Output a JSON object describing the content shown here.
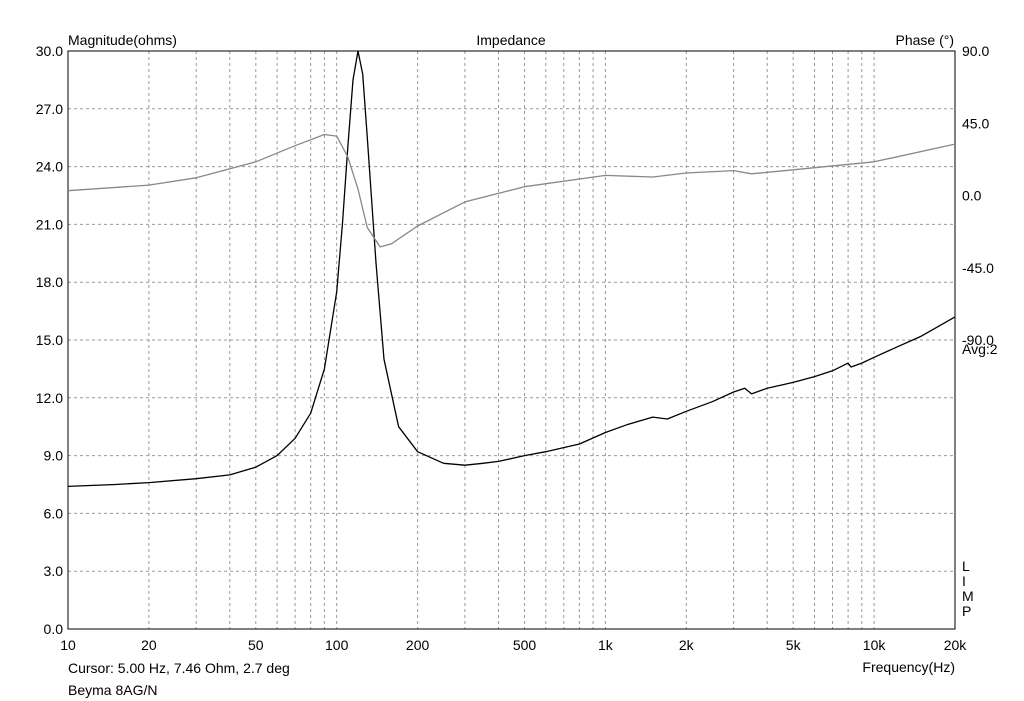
{
  "chart_data": {
    "type": "line",
    "title": "Impedance",
    "y_left_label": "Magnitude(ohms)",
    "y_right_label": "Phase (°)",
    "xlabel": "Frequency(Hz)",
    "x_scale": "log",
    "xlim": [
      10,
      20000
    ],
    "ylim": [
      0,
      30
    ],
    "y_right_lim": [
      -270,
      90
    ],
    "grid": true,
    "x_ticks": [
      10,
      20,
      50,
      100,
      200,
      500,
      1000,
      2000,
      5000,
      10000,
      20000
    ],
    "x_tick_labels": [
      "10",
      "20",
      "50",
      "100",
      "200",
      "500",
      "1k",
      "2k",
      "5k",
      "10k",
      "20k"
    ],
    "y_left_ticks": [
      "0.0",
      "3.0",
      "6.0",
      "9.0",
      "12.0",
      "15.0",
      "18.0",
      "21.0",
      "24.0",
      "27.0",
      "30.0"
    ],
    "y_right_ticks": [
      {
        "value": 90,
        "label": "90.0"
      },
      {
        "value": 45,
        "label": "45.0"
      },
      {
        "value": 0,
        "label": "0.0"
      },
      {
        "value": -45,
        "label": "-45.0"
      },
      {
        "value": -90,
        "label": "-90.0"
      }
    ],
    "avg_label": "Avg:2",
    "limp_label": [
      "L",
      "I",
      "M",
      "P"
    ],
    "series": [
      {
        "axis": "left",
        "color": "#000000",
        "x": [
          10,
          15,
          20,
          30,
          40,
          50,
          60,
          70,
          80,
          90,
          100,
          105,
          110,
          115,
          120,
          125,
          130,
          140,
          150,
          170,
          200,
          250,
          300,
          350,
          400,
          500,
          600,
          800,
          1000,
          1200,
          1500,
          1700,
          2000,
          2500,
          3000,
          3300,
          3500,
          4000,
          5000,
          6000,
          7000,
          8000,
          8200,
          9000,
          10000,
          12000,
          15000,
          20000
        ],
        "values": [
          7.4,
          7.5,
          7.6,
          7.8,
          8.0,
          8.4,
          9.0,
          9.9,
          11.2,
          13.5,
          17.5,
          21.0,
          25.0,
          28.5,
          30.0,
          28.8,
          25.5,
          19.0,
          14.0,
          10.5,
          9.2,
          8.6,
          8.5,
          8.6,
          8.7,
          9.0,
          9.2,
          9.6,
          10.2,
          10.6,
          11.0,
          10.9,
          11.3,
          11.8,
          12.3,
          12.5,
          12.2,
          12.5,
          12.8,
          13.1,
          13.4,
          13.8,
          13.6,
          13.8,
          14.1,
          14.6,
          15.2,
          16.2
        ]
      },
      {
        "axis": "right",
        "color": "#888888",
        "x": [
          10,
          20,
          30,
          50,
          70,
          90,
          100,
          110,
          120,
          130,
          145,
          160,
          200,
          300,
          500,
          1000,
          1500,
          2000,
          3000,
          3500,
          5000,
          10000,
          20000
        ],
        "values": [
          3.0,
          6.5,
          11.0,
          21.0,
          31.0,
          38.0,
          37.0,
          24.0,
          4.0,
          -20.0,
          -32.0,
          -30.0,
          -19.0,
          -4.0,
          5.5,
          12.5,
          11.5,
          14.0,
          15.5,
          13.5,
          16.0,
          21.0,
          32.0
        ]
      }
    ]
  },
  "footer": {
    "cursor_text": "Cursor: 5.00 Hz, 7.46 Ohm, 2.7 deg",
    "device_name": "Beyma 8AG/N"
  }
}
